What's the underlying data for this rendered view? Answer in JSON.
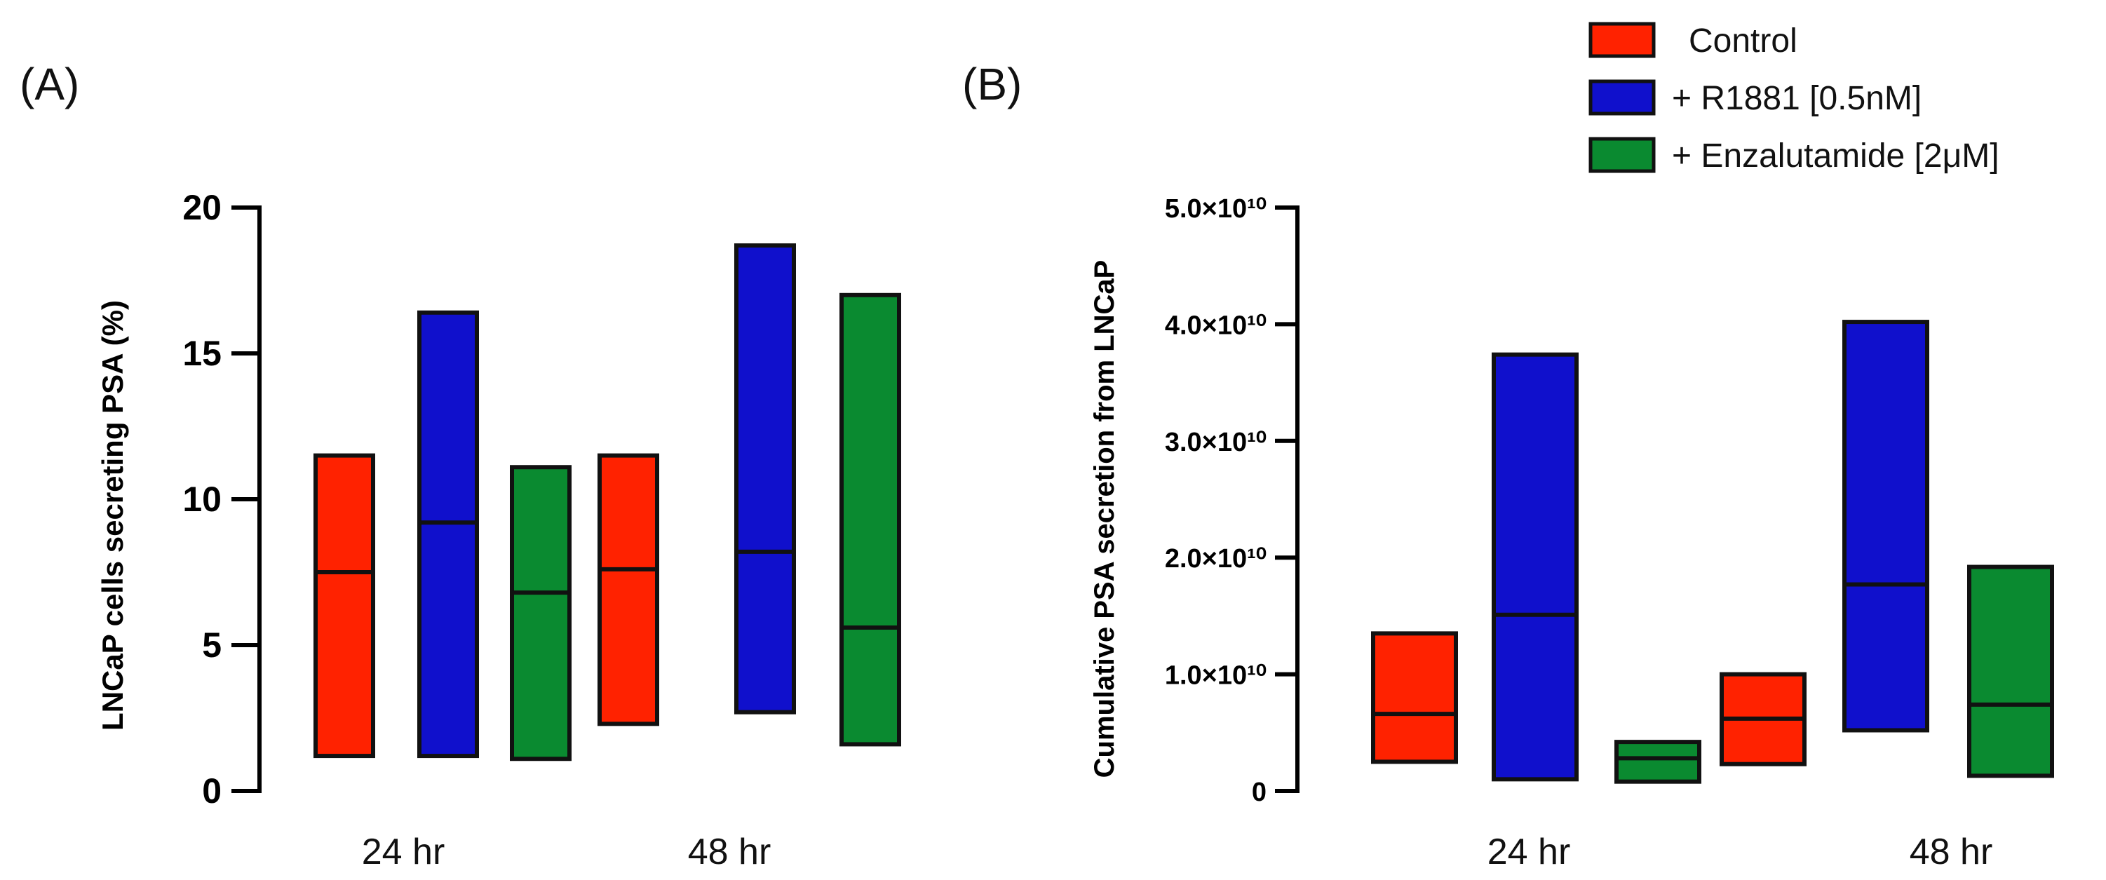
{
  "legend": [
    {
      "label": "Control",
      "color": "#ff2200"
    },
    {
      "label": "+ R1881 [0.5nM]",
      "color": "#1010cc"
    },
    {
      "label": "+ Enzalutamide [2μM]",
      "color": "#0a8a30"
    }
  ],
  "chart_data": [
    {
      "type": "floating-bar",
      "panel_label": "(A)",
      "title": "",
      "xlabel": "",
      "ylabel": "LNCaP cells secreting PSA (%)",
      "ylim": [
        0,
        20
      ],
      "yticks": [
        0,
        5,
        10,
        15,
        20
      ],
      "ytick_labels": [
        "0",
        "5",
        "10",
        "15",
        "20"
      ],
      "categories": [
        "24 hr",
        "48 hr"
      ],
      "series": [
        {
          "name": "Control",
          "min": [
            1.2,
            2.3
          ],
          "mean": [
            7.5,
            7.6
          ],
          "max": [
            11.5,
            11.5
          ]
        },
        {
          "name": "+ R1881 [0.5nM]",
          "min": [
            1.2,
            2.7
          ],
          "mean": [
            9.2,
            8.2
          ],
          "max": [
            16.4,
            18.7
          ]
        },
        {
          "name": "+ Enzalutamide [2μM]",
          "min": [
            1.1,
            1.6
          ],
          "mean": [
            6.8,
            5.6
          ],
          "max": [
            11.1,
            17.0
          ]
        }
      ]
    },
    {
      "type": "floating-bar",
      "panel_label": "(B)",
      "title": "",
      "xlabel": "",
      "ylabel": "Cumulative PSA secretion from LNCaP",
      "ylim": [
        0,
        50000000000
      ],
      "yticks": [
        0,
        10000000000,
        20000000000,
        30000000000,
        40000000000,
        50000000000
      ],
      "ytick_labels": [
        "0",
        "1.0×10¹⁰",
        "2.0×10¹⁰",
        "3.0×10¹⁰",
        "4.0×10¹⁰",
        "5.0×10¹⁰"
      ],
      "categories": [
        "24 hr",
        "48 hr"
      ],
      "series": [
        {
          "name": "Control",
          "min": [
            2500000000,
            2300000000
          ],
          "mean": [
            6600000000,
            6200000000
          ],
          "max": [
            13500000000,
            10000000000
          ]
        },
        {
          "name": "+ R1881 [0.5nM]",
          "min": [
            1000000000,
            5200000000
          ],
          "mean": [
            15100000000,
            17700000000
          ],
          "max": [
            37400000000,
            40200000000
          ]
        },
        {
          "name": "+ Enzalutamide [2μM]",
          "min": [
            800000000,
            1300000000
          ],
          "mean": [
            2800000000,
            7400000000
          ],
          "max": [
            4200000000,
            19200000000
          ]
        }
      ]
    }
  ]
}
